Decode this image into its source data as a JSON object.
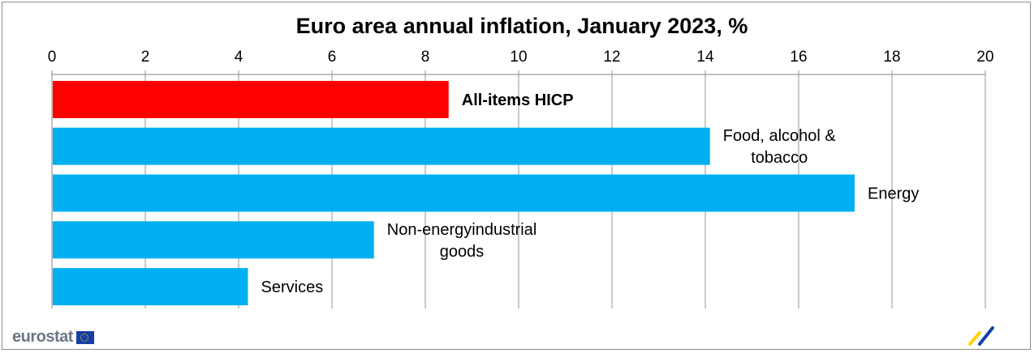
{
  "chart_data": {
    "type": "bar",
    "orientation": "horizontal",
    "title": "Euro area annual inflation, January 2023, %",
    "xlim": [
      0,
      20
    ],
    "x_ticks": [
      0,
      2,
      4,
      6,
      8,
      10,
      12,
      14,
      16,
      18,
      20
    ],
    "grid": true,
    "categories": [
      [
        "All-items HICP"
      ],
      [
        "Food, alcohol &",
        "tobacco"
      ],
      [
        "Energy"
      ],
      [
        "Non-energyindustrial",
        "goods"
      ],
      [
        "Services"
      ]
    ],
    "values": [
      8.5,
      14.1,
      17.2,
      6.9,
      4.2
    ],
    "bar_colors": [
      "#ff0000",
      "#00b0f0",
      "#00b0f0",
      "#00b0f0",
      "#00b0f0"
    ],
    "label_bold": [
      true,
      false,
      false,
      false,
      false
    ]
  },
  "branding": {
    "logo_text": "eurostat",
    "flag_icon": "eu-flag-icon",
    "corner_icon": "stripe-mark-icon",
    "corner_colors": [
      "#ffd200",
      "#153fa6"
    ]
  }
}
